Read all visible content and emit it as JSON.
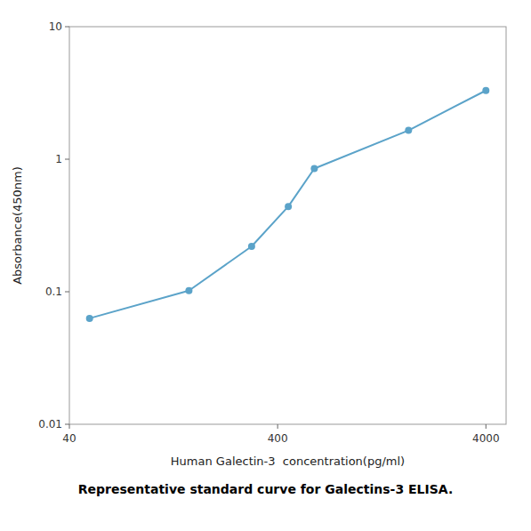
{
  "chart_data": {
    "type": "line",
    "caption": "Representative standard curve for Galectins-3 ELISA.",
    "x_label": "Human Galectin-3  concentration(pg/ml)",
    "y_label": "Absorbance(450nm)",
    "x": [
      50,
      150,
      300,
      450,
      600,
      1700,
      4000
    ],
    "values": [
      0.063,
      0.102,
      0.22,
      0.44,
      0.85,
      1.65,
      3.3
    ],
    "color": "#5ba3c9",
    "marker": "circle",
    "log": true,
    "xlim": [
      40,
      5000
    ],
    "ylim": [
      0.01,
      10
    ],
    "xticks": [
      40,
      400,
      4000
    ],
    "yticks": [
      0.01,
      0.1,
      1,
      10
    ],
    "grid": false
  }
}
